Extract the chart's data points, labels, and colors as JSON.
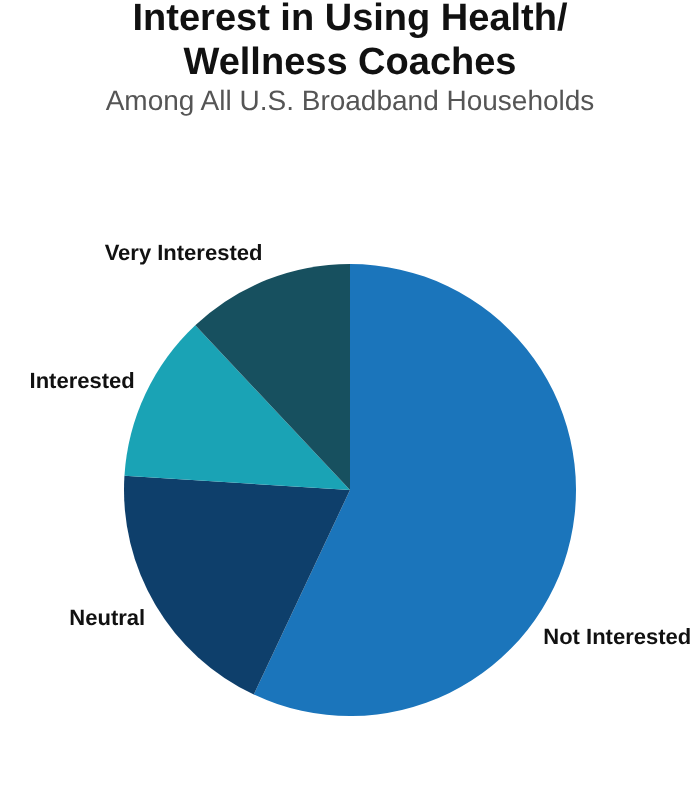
{
  "chart_data": {
    "type": "pie",
    "title": "Interest in Using Health/Wellness Coaches",
    "subtitle": "Among All U.S. Broadband Households",
    "categories": [
      "Not Interested",
      "Neutral",
      "Interested",
      "Very Interested"
    ],
    "values": [
      57,
      19,
      12,
      12
    ],
    "colors": [
      "#1b75bb",
      "#0e3f6b",
      "#1aa3b5",
      "#17505f"
    ]
  }
}
